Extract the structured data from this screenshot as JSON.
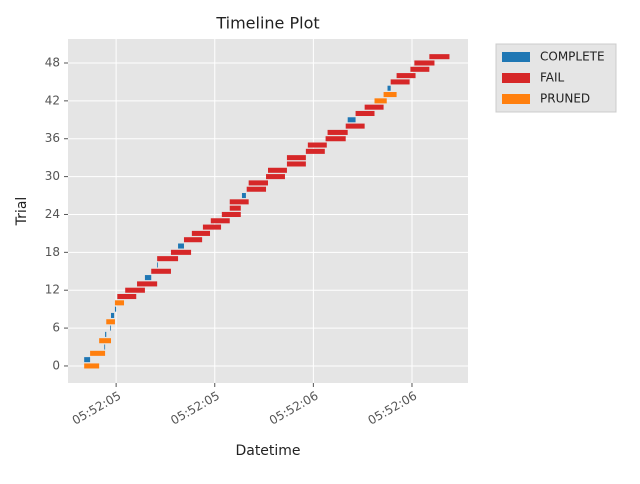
{
  "chart_data": {
    "type": "timeline",
    "title": "Timeline Plot",
    "x_label": "Datetime",
    "y_label": "Trial",
    "xlim": [
      5.378,
      6.392
    ],
    "xticks": [
      {
        "value": 5.5,
        "label": "05:52:05"
      },
      {
        "value": 5.75,
        "label": "05:52:05"
      },
      {
        "value": 6.0,
        "label": "05:52:06"
      },
      {
        "value": 6.25,
        "label": "05:52:06"
      }
    ],
    "ylim": [
      -2.7,
      51.8
    ],
    "yticks": [
      0,
      6,
      12,
      18,
      24,
      30,
      36,
      42,
      48
    ],
    "grid": true,
    "legend": "outside-right",
    "series": [
      {
        "name": "COMPLETE",
        "color": "#1f77b4",
        "trials": [
          1,
          3,
          5,
          6,
          8,
          9,
          14,
          16,
          19,
          27,
          39,
          44
        ],
        "start": [
          5.419,
          5.47,
          5.472,
          5.485,
          5.487,
          5.497,
          5.573,
          5.604,
          5.657,
          5.819,
          6.087,
          6.188
        ],
        "end": [
          5.434,
          5.472,
          5.475,
          5.487,
          5.495,
          5.5,
          5.589,
          5.606,
          5.672,
          5.829,
          6.107,
          6.196
        ]
      },
      {
        "name": "FAIL",
        "color": "#d62728",
        "trials": [
          11,
          12,
          13,
          15,
          17,
          18,
          20,
          21,
          22,
          23,
          24,
          25,
          26,
          28,
          29,
          30,
          31,
          32,
          33,
          34,
          35,
          36,
          37,
          38,
          40,
          41,
          45,
          46,
          47,
          48,
          49
        ],
        "start": [
          5.503,
          5.523,
          5.553,
          5.589,
          5.604,
          5.639,
          5.672,
          5.692,
          5.72,
          5.74,
          5.768,
          5.788,
          5.788,
          5.831,
          5.836,
          5.88,
          5.885,
          5.933,
          5.933,
          5.981,
          5.986,
          6.031,
          6.036,
          6.082,
          6.107,
          6.13,
          6.196,
          6.211,
          6.246,
          6.256,
          6.294
        ],
        "end": [
          5.551,
          5.573,
          5.604,
          5.639,
          5.657,
          5.69,
          5.718,
          5.738,
          5.766,
          5.788,
          5.816,
          5.816,
          5.836,
          5.88,
          5.885,
          5.928,
          5.933,
          5.981,
          5.981,
          6.029,
          6.034,
          6.082,
          6.087,
          6.13,
          6.155,
          6.178,
          6.244,
          6.259,
          6.294,
          6.307,
          6.345
        ]
      },
      {
        "name": "PRUNED",
        "color": "#ff7f0e",
        "trials": [
          0,
          2,
          4,
          7,
          10,
          42,
          43
        ],
        "start": [
          5.419,
          5.434,
          5.457,
          5.475,
          5.497,
          6.155,
          6.178
        ],
        "end": [
          5.457,
          5.472,
          5.487,
          5.497,
          5.52,
          6.186,
          6.211
        ]
      }
    ]
  }
}
